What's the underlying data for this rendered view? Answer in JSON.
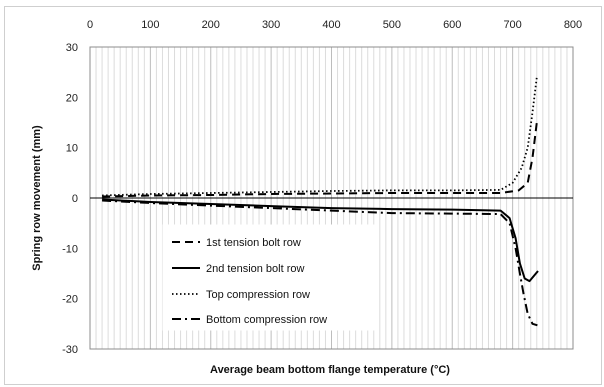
{
  "chart_data": {
    "type": "line",
    "title": "",
    "xlabel": "Average beam bottom flange temperature (°C)",
    "ylabel": "Spring row movement (mm)",
    "xlim": [
      0,
      800
    ],
    "ylim": [
      -30,
      30
    ],
    "xticks": [
      0,
      100,
      200,
      300,
      400,
      500,
      600,
      700,
      800
    ],
    "yticks": [
      30,
      20,
      10,
      0,
      -10,
      -20,
      -30
    ],
    "x_axis_position": "top",
    "grid": "vertical",
    "legend_position": "bottom-center",
    "series": [
      {
        "name": "1st tension bolt row",
        "style": "dashed",
        "x": [
          20,
          100,
          200,
          300,
          400,
          500,
          600,
          680,
          710,
          725,
          733,
          740
        ],
        "y": [
          0.3,
          0.5,
          0.6,
          0.8,
          0.9,
          1.0,
          1.0,
          1.0,
          1.5,
          3,
          8,
          15
        ]
      },
      {
        "name": "2nd tension bolt row",
        "style": "solid",
        "x": [
          20,
          100,
          200,
          300,
          400,
          500,
          600,
          680,
          695,
          705,
          712,
          720,
          728,
          735,
          742
        ],
        "y": [
          -0.3,
          -0.8,
          -1.2,
          -1.6,
          -2.0,
          -2.2,
          -2.3,
          -2.5,
          -4,
          -8,
          -13,
          -16,
          -16.5,
          -15.5,
          -14.5
        ]
      },
      {
        "name": "Top compression row",
        "style": "dotted",
        "x": [
          20,
          100,
          200,
          300,
          400,
          500,
          600,
          680,
          700,
          715,
          725,
          733,
          740
        ],
        "y": [
          0.5,
          0.8,
          1.0,
          1.2,
          1.4,
          1.5,
          1.5,
          1.6,
          3,
          6,
          10,
          17,
          24
        ]
      },
      {
        "name": "Bottom compression row",
        "style": "dash-dot",
        "x": [
          20,
          100,
          200,
          300,
          400,
          500,
          600,
          680,
          695,
          705,
          712,
          718,
          725,
          733,
          741
        ],
        "y": [
          -0.5,
          -1.0,
          -1.5,
          -2.0,
          -2.5,
          -3.0,
          -3.1,
          -3.2,
          -5,
          -10,
          -15,
          -19,
          -23,
          -25,
          -25.3
        ]
      }
    ]
  }
}
